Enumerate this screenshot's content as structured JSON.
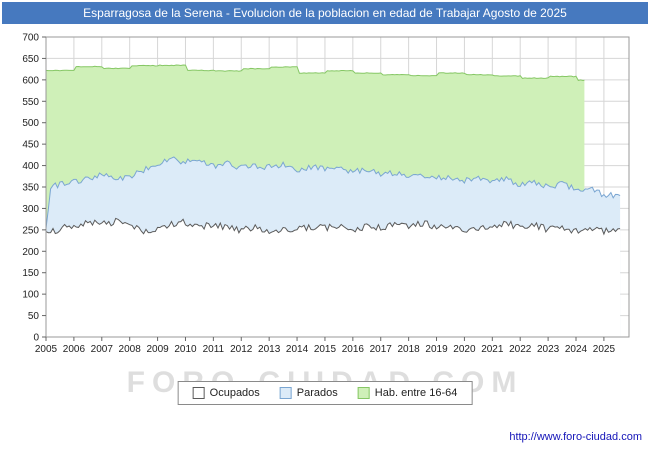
{
  "title": "Esparragosa de la Serena - Evolucion de la poblacion en edad de Trabajar Agosto de 2025",
  "watermark": "FORO-CIUDAD.COM",
  "footer_url": "http://www.foro-ciudad.com",
  "colors": {
    "title_bg": "#4679bf",
    "title_text": "#ffffff",
    "grid": "#d6d6d6",
    "plot_border": "#999999",
    "axis_text": "#222222",
    "url_text": "#1414b8"
  },
  "legend": [
    {
      "label": "Ocupados",
      "fill": "#ffffff",
      "border": "#5a5a5a"
    },
    {
      "label": "Parados",
      "fill": "#dcebf8",
      "border": "#7aa6d2"
    },
    {
      "label": "Hab. entre 16-64",
      "fill": "#cff0b8",
      "border": "#86c765"
    }
  ],
  "chart_data": {
    "type": "area",
    "title": "Evolucion de la poblacion en edad de Trabajar - Agosto de 2025",
    "x_range": [
      2005,
      2025.9
    ],
    "y_range": [
      0,
      700
    ],
    "grid": true,
    "legend_position": "bottom-center",
    "y_ticks": [
      0,
      50,
      100,
      150,
      200,
      250,
      300,
      350,
      400,
      450,
      500,
      550,
      600,
      650,
      700
    ],
    "x_ticks": [
      2005,
      2006,
      2007,
      2008,
      2009,
      2010,
      2011,
      2012,
      2013,
      2014,
      2015,
      2016,
      2017,
      2018,
      2019,
      2020,
      2021,
      2022,
      2023,
      2024,
      2025
    ],
    "series": [
      {
        "name": "Hab. entre 16-64",
        "key": "hab-16-64",
        "interpolation": "step",
        "noise": 0.8,
        "seed": 3,
        "end": 2024.3,
        "fill": "#cff0b8",
        "stroke": "#86c765",
        "anchors": [
          [
            2005,
            622
          ],
          [
            2006,
            631
          ],
          [
            2007,
            627
          ],
          [
            2008,
            633
          ],
          [
            2009,
            634
          ],
          [
            2010,
            622
          ],
          [
            2011,
            621
          ],
          [
            2012,
            626
          ],
          [
            2013,
            630
          ],
          [
            2014,
            616
          ],
          [
            2015,
            621
          ],
          [
            2016,
            616
          ],
          [
            2017,
            612
          ],
          [
            2018,
            610
          ],
          [
            2019,
            616
          ],
          [
            2020,
            612
          ],
          [
            2021,
            609
          ],
          [
            2022,
            604
          ],
          [
            2023,
            608
          ],
          [
            2024,
            599
          ]
        ]
      },
      {
        "name": "Parados",
        "key": "parados",
        "interpolation": "linear",
        "noise": 7,
        "seed": 7,
        "end": 2025.58,
        "fill": "#dcebf8",
        "stroke": "#7aa6d2",
        "anchors": [
          [
            2005,
            252
          ],
          [
            2005.17,
            350
          ],
          [
            2005.5,
            355
          ],
          [
            2006,
            362
          ],
          [
            2006.5,
            372
          ],
          [
            2007,
            378
          ],
          [
            2007.5,
            368
          ],
          [
            2008,
            374
          ],
          [
            2008.5,
            390
          ],
          [
            2009,
            405
          ],
          [
            2009.5,
            416
          ],
          [
            2010,
            408
          ],
          [
            2010.5,
            412
          ],
          [
            2011,
            400
          ],
          [
            2011.5,
            405
          ],
          [
            2012,
            394
          ],
          [
            2012.5,
            400
          ],
          [
            2013,
            396
          ],
          [
            2013.5,
            402
          ],
          [
            2014,
            390
          ],
          [
            2014.5,
            396
          ],
          [
            2015,
            392
          ],
          [
            2015.5,
            396
          ],
          [
            2016,
            385
          ],
          [
            2016.5,
            390
          ],
          [
            2017,
            380
          ],
          [
            2017.5,
            384
          ],
          [
            2018,
            374
          ],
          [
            2018.5,
            378
          ],
          [
            2019,
            370
          ],
          [
            2019.5,
            374
          ],
          [
            2020,
            366
          ],
          [
            2020.5,
            372
          ],
          [
            2021,
            363
          ],
          [
            2021.5,
            368
          ],
          [
            2022,
            355
          ],
          [
            2022.5,
            360
          ],
          [
            2023,
            352
          ],
          [
            2023.5,
            356
          ],
          [
            2024,
            344
          ],
          [
            2024.5,
            348
          ],
          [
            2025,
            332
          ],
          [
            2025.58,
            330
          ]
        ]
      },
      {
        "name": "Ocupados",
        "key": "ocupados",
        "interpolation": "linear",
        "noise": 8,
        "seed": 13,
        "end": 2025.58,
        "fill": "#ffffff",
        "stroke": "#5a5a5a",
        "anchors": [
          [
            2005,
            243
          ],
          [
            2005.5,
            252
          ],
          [
            2006,
            260
          ],
          [
            2006.5,
            268
          ],
          [
            2007,
            262
          ],
          [
            2007.5,
            270
          ],
          [
            2008,
            256
          ],
          [
            2008.5,
            248
          ],
          [
            2009,
            255
          ],
          [
            2009.5,
            262
          ],
          [
            2010,
            268
          ],
          [
            2010.5,
            258
          ],
          [
            2011,
            264
          ],
          [
            2011.5,
            256
          ],
          [
            2012,
            250
          ],
          [
            2012.5,
            256
          ],
          [
            2013,
            246
          ],
          [
            2013.5,
            252
          ],
          [
            2014,
            250
          ],
          [
            2014.5,
            258
          ],
          [
            2015,
            254
          ],
          [
            2015.5,
            260
          ],
          [
            2016,
            250
          ],
          [
            2016.5,
            256
          ],
          [
            2017,
            254
          ],
          [
            2017.5,
            262
          ],
          [
            2018,
            258
          ],
          [
            2018.5,
            266
          ],
          [
            2019,
            256
          ],
          [
            2019.5,
            262
          ],
          [
            2020,
            246
          ],
          [
            2020.5,
            252
          ],
          [
            2021,
            258
          ],
          [
            2021.5,
            266
          ],
          [
            2022,
            256
          ],
          [
            2022.5,
            262
          ],
          [
            2023,
            250
          ],
          [
            2023.5,
            256
          ],
          [
            2024,
            246
          ],
          [
            2024.5,
            252
          ],
          [
            2025,
            248
          ],
          [
            2025.58,
            253
          ]
        ]
      }
    ]
  }
}
